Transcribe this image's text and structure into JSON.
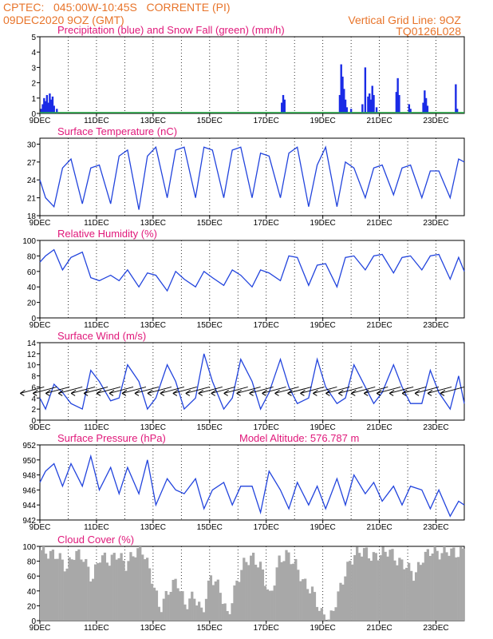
{
  "header": {
    "line1": "CPTEC:   045:00W-10:45S   CORRENTE (PI)",
    "line2": "09DEC2020 9OZ (GMT)",
    "grid_note": "Vertical Grid Line: 9OZ",
    "code": "TQ0126L028"
  },
  "colors": {
    "header": "#e8742a",
    "title": "#e0187a",
    "line": "#2244dd",
    "bar": "#1a2be6",
    "snow": "#22aa44",
    "cloud": "#a8a8a8"
  },
  "x_ticks": [
    "9DEC",
    "11DEC",
    "13DEC",
    "15DEC",
    "17DEC",
    "19DEC",
    "21DEC",
    "23DEC"
  ],
  "x_range": [
    9,
    24
  ],
  "chart_data": [
    {
      "id": "precip",
      "type": "bar",
      "title": "Precipitation (blue) and Snow Fall (green) (mm/h)",
      "ylim": [
        0,
        5
      ],
      "yticks": [
        0,
        1,
        2,
        3,
        4,
        5
      ],
      "x": [
        9.05,
        9.1,
        9.15,
        9.2,
        9.25,
        9.3,
        9.35,
        9.4,
        9.45,
        9.5,
        9.6,
        17.55,
        17.6,
        17.65,
        19.6,
        19.65,
        19.7,
        19.75,
        19.8,
        19.85,
        20.0,
        20.4,
        20.5,
        20.6,
        20.65,
        20.7,
        20.75,
        20.8,
        20.9,
        21.6,
        21.65,
        21.7,
        22.05,
        22.1,
        22.55,
        22.6,
        22.65,
        22.7,
        23.7,
        23.75
      ],
      "values": [
        0.3,
        0.6,
        1.0,
        0.8,
        1.2,
        0.7,
        1.3,
        0.9,
        1.1,
        0.5,
        0.3,
        0.7,
        1.2,
        0.9,
        1.2,
        3.2,
        2.4,
        1.6,
        0.9,
        0.4,
        0.3,
        0.6,
        3.0,
        1.1,
        1.3,
        0.9,
        1.8,
        1.2,
        0.4,
        1.4,
        2.3,
        1.2,
        0.6,
        0.3,
        0.7,
        1.5,
        1.0,
        0.5,
        1.9,
        0.3
      ],
      "snow": 0
    },
    {
      "id": "temp",
      "type": "line",
      "title": "Surface Temperature (nC)",
      "ylim": [
        18,
        31
      ],
      "yticks": [
        18,
        21,
        24,
        27,
        30
      ],
      "x": [
        9,
        9.2,
        9.5,
        9.8,
        10.1,
        10.5,
        10.8,
        11.1,
        11.5,
        11.8,
        12.1,
        12.5,
        12.8,
        13.1,
        13.5,
        13.8,
        14.1,
        14.5,
        14.8,
        15.1,
        15.5,
        15.8,
        16.1,
        16.5,
        16.8,
        17.1,
        17.5,
        17.8,
        18.1,
        18.5,
        18.8,
        19.1,
        19.5,
        19.8,
        20.1,
        20.5,
        20.8,
        21.1,
        21.5,
        21.8,
        22.1,
        22.5,
        22.8,
        23.1,
        23.5,
        23.8,
        24
      ],
      "values": [
        24,
        21,
        19.5,
        26,
        27.5,
        20,
        26,
        26.5,
        20,
        28,
        29,
        19,
        28,
        29.5,
        21,
        29,
        29.5,
        21,
        29.5,
        29,
        21,
        29,
        29.5,
        21,
        28.5,
        28,
        21,
        28.5,
        29.5,
        19.5,
        26.5,
        29.5,
        19.5,
        27,
        26,
        21,
        26,
        26.5,
        21.5,
        26,
        26.5,
        21,
        25.5,
        25.5,
        21,
        27.5,
        27
      ]
    },
    {
      "id": "rh",
      "type": "line",
      "title": "Relative Humidity (%)",
      "ylim": [
        0,
        100
      ],
      "yticks": [
        0,
        20,
        40,
        60,
        80,
        100
      ],
      "x": [
        9,
        9.2,
        9.5,
        9.8,
        10.1,
        10.5,
        10.8,
        11.1,
        11.5,
        11.8,
        12.1,
        12.5,
        12.8,
        13.1,
        13.5,
        13.8,
        14.1,
        14.5,
        14.8,
        15.1,
        15.5,
        15.8,
        16.1,
        16.5,
        16.8,
        17.1,
        17.5,
        17.8,
        18.1,
        18.5,
        18.8,
        19.1,
        19.5,
        19.8,
        20.1,
        20.5,
        20.8,
        21.1,
        21.5,
        21.8,
        22.1,
        22.5,
        22.8,
        23.1,
        23.5,
        23.8,
        24
      ],
      "values": [
        72,
        80,
        88,
        62,
        78,
        85,
        52,
        48,
        55,
        48,
        62,
        40,
        58,
        55,
        35,
        60,
        50,
        40,
        60,
        52,
        42,
        62,
        55,
        40,
        62,
        58,
        48,
        80,
        78,
        42,
        68,
        70,
        40,
        78,
        80,
        62,
        80,
        82,
        58,
        78,
        80,
        62,
        80,
        82,
        50,
        78,
        60
      ]
    },
    {
      "id": "wind",
      "type": "line",
      "title": "Surface Wind (m/s)",
      "ylim": [
        0,
        14
      ],
      "yticks": [
        0,
        2,
        4,
        6,
        8,
        10,
        12,
        14
      ],
      "x": [
        9,
        9.2,
        9.5,
        9.8,
        10.1,
        10.5,
        10.8,
        11.1,
        11.5,
        11.8,
        12.1,
        12.5,
        12.8,
        13.1,
        13.5,
        13.8,
        14.1,
        14.5,
        14.8,
        15.1,
        15.5,
        15.8,
        16.1,
        16.5,
        16.8,
        17.1,
        17.5,
        17.8,
        18.1,
        18.5,
        18.8,
        19.1,
        19.5,
        19.8,
        20.1,
        20.5,
        20.8,
        21.1,
        21.5,
        21.8,
        22.1,
        22.5,
        22.8,
        23.1,
        23.5,
        23.8,
        24
      ],
      "values": [
        4,
        2,
        6.5,
        5,
        3,
        2,
        9,
        7,
        3.5,
        4,
        10,
        7,
        2,
        4,
        10,
        7,
        2,
        4,
        12,
        7,
        2,
        4,
        11,
        7,
        2,
        5,
        11,
        6,
        3,
        4,
        11,
        6,
        3,
        4,
        10,
        6,
        3,
        5,
        10,
        6,
        3,
        3,
        9,
        5,
        2,
        8,
        3
      ],
      "vectors_x": [
        9.15,
        9.6,
        10.05,
        10.5,
        10.95,
        11.4,
        11.85,
        12.3,
        12.75,
        13.2,
        13.65,
        14.1,
        14.55,
        15.0,
        15.45,
        15.9,
        16.35,
        16.8,
        17.25,
        17.7,
        18.15,
        18.6,
        19.05,
        19.5,
        19.95,
        20.4,
        20.85,
        21.3,
        21.75,
        22.2,
        22.65,
        23.1,
        23.55,
        24.0
      ]
    },
    {
      "id": "pres",
      "type": "line",
      "title": "Surface Pressure (hPa)",
      "subtitle": "Model Altitude: 576.787 m",
      "ylim": [
        942,
        952
      ],
      "yticks": [
        942,
        944,
        946,
        948,
        950,
        952
      ],
      "x": [
        9,
        9.2,
        9.5,
        9.8,
        10.1,
        10.5,
        10.8,
        11.1,
        11.5,
        11.8,
        12.1,
        12.5,
        12.8,
        13.1,
        13.5,
        13.8,
        14.1,
        14.5,
        14.8,
        15.1,
        15.5,
        15.8,
        16.1,
        16.5,
        16.8,
        17.1,
        17.5,
        17.8,
        18.1,
        18.5,
        18.8,
        19.1,
        19.5,
        19.8,
        20.1,
        20.5,
        20.8,
        21.1,
        21.5,
        21.8,
        22.1,
        22.5,
        22.8,
        23.1,
        23.5,
        23.8,
        24
      ],
      "values": [
        947,
        948.5,
        949.5,
        946.5,
        949.5,
        946.5,
        950.5,
        946,
        949,
        945.5,
        949,
        945.5,
        950,
        944,
        947.5,
        946,
        945.5,
        947.5,
        943.5,
        946,
        947,
        944,
        946.5,
        946.5,
        943,
        948.5,
        946,
        943.5,
        947,
        944,
        946.5,
        943.5,
        947.5,
        944,
        948,
        945.5,
        947,
        944.5,
        946.5,
        944,
        946.5,
        946,
        943.5,
        946,
        942.5,
        944.5,
        944
      ]
    },
    {
      "id": "cloud",
      "type": "area",
      "title": "Cloud Cover (%)",
      "ylim": [
        0,
        100
      ],
      "yticks": [
        0,
        20,
        40,
        60,
        80,
        100
      ],
      "x": [
        9,
        9.3,
        9.6,
        9.9,
        10.2,
        10.5,
        10.8,
        11.1,
        11.4,
        11.7,
        12.0,
        12.3,
        12.6,
        12.9,
        13.2,
        13.5,
        13.8,
        14.1,
        14.4,
        14.7,
        15.0,
        15.3,
        15.6,
        15.9,
        16.2,
        16.5,
        16.8,
        17.1,
        17.4,
        17.7,
        18.0,
        18.3,
        18.6,
        18.9,
        19.2,
        19.5,
        19.8,
        20.1,
        20.4,
        20.7,
        21.0,
        21.3,
        21.6,
        21.9,
        22.2,
        22.5,
        22.8,
        23.1,
        23.4,
        23.7,
        24
      ],
      "values": [
        95,
        90,
        88,
        70,
        92,
        85,
        55,
        88,
        80,
        90,
        75,
        92,
        95,
        60,
        15,
        40,
        55,
        20,
        35,
        10,
        60,
        45,
        5,
        50,
        80,
        85,
        70,
        30,
        80,
        90,
        75,
        50,
        40,
        10,
        0,
        35,
        70,
        90,
        95,
        85,
        90,
        95,
        80,
        75,
        60,
        85,
        95,
        90,
        95,
        90,
        95
      ]
    }
  ]
}
